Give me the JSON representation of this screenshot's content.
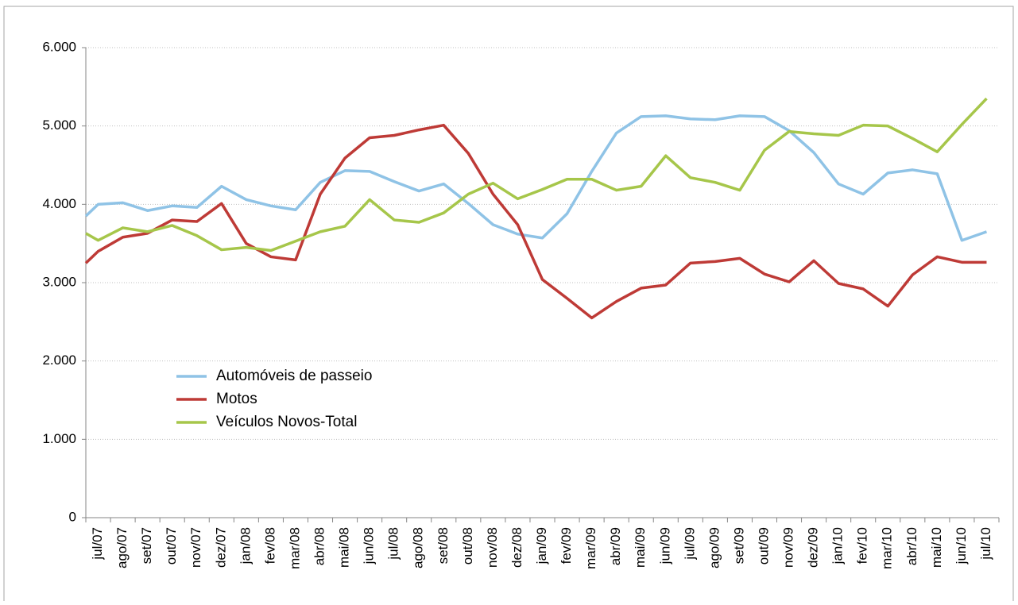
{
  "chart_data": {
    "type": "line",
    "categories": [
      null,
      "jul/07",
      "ago/07",
      "set/07",
      "out/07",
      "nov/07",
      "dez/07",
      "jan/08",
      "fev/08",
      "mar/08",
      "abr/08",
      "mai/08",
      "jun/08",
      "jul/08",
      "ago/08",
      "set/08",
      "out/08",
      "nov/08",
      "dez/08",
      "jan/09",
      "fev/09",
      "mar/09",
      "abr/09",
      "mai/09",
      "jun/09",
      "jul/09",
      "ago/09",
      "set/09",
      "out/09",
      "nov/09",
      "dez/09",
      "jan/10",
      "fev/10",
      "mar/10",
      "abr/10",
      "mai/10",
      "jun/10",
      "jul/10"
    ],
    "series": [
      {
        "name": "Automóveis de passeio",
        "color": "#8fc3e6",
        "values": [
          3850,
          4000,
          4020,
          3920,
          3980,
          3960,
          4230,
          4060,
          3980,
          3930,
          4280,
          4430,
          4420,
          4290,
          4170,
          4260,
          4010,
          3740,
          3620,
          3570,
          3880,
          4420,
          4910,
          5120,
          5130,
          5090,
          5080,
          5130,
          5120,
          4940,
          4660,
          4260,
          4130,
          4400,
          4440,
          4390,
          3540,
          3650
        ]
      },
      {
        "name": "Motos",
        "color": "#be3a36",
        "values": [
          3250,
          3400,
          3580,
          3630,
          3800,
          3780,
          4010,
          3500,
          3330,
          3290,
          4130,
          4590,
          4850,
          4880,
          4950,
          5010,
          4650,
          4130,
          3740,
          3040,
          2800,
          2550,
          2760,
          2930,
          2970,
          3250,
          3270,
          3310,
          3110,
          3010,
          3280,
          2990,
          2920,
          2700,
          3100,
          3330,
          3260,
          3260
        ]
      },
      {
        "name": "Veículos Novos-Total",
        "color": "#a6c64a",
        "values": [
          3630,
          3540,
          3700,
          3650,
          3730,
          3600,
          3420,
          3450,
          3410,
          3530,
          3650,
          3720,
          4060,
          3800,
          3770,
          3890,
          4130,
          4270,
          4070,
          4190,
          4320,
          4320,
          4180,
          4230,
          4620,
          4340,
          4280,
          4180,
          4690,
          4930,
          4900,
          4880,
          5010,
          5000,
          4840,
          4670,
          5020,
          5350
        ]
      }
    ],
    "ylim": [
      0,
      6000
    ],
    "yticks": [
      0,
      {
        "value": 1000,
        "label": "1.000"
      },
      {
        "value": 2000,
        "label": "2.000"
      },
      {
        "value": 3000,
        "label": "3.000"
      },
      {
        "value": 4000,
        "label": "4.000"
      },
      {
        "value": 5000,
        "label": "5.000"
      },
      {
        "value": 6000,
        "label": "6.000"
      }
    ],
    "grid": true,
    "legend": "lower left"
  }
}
